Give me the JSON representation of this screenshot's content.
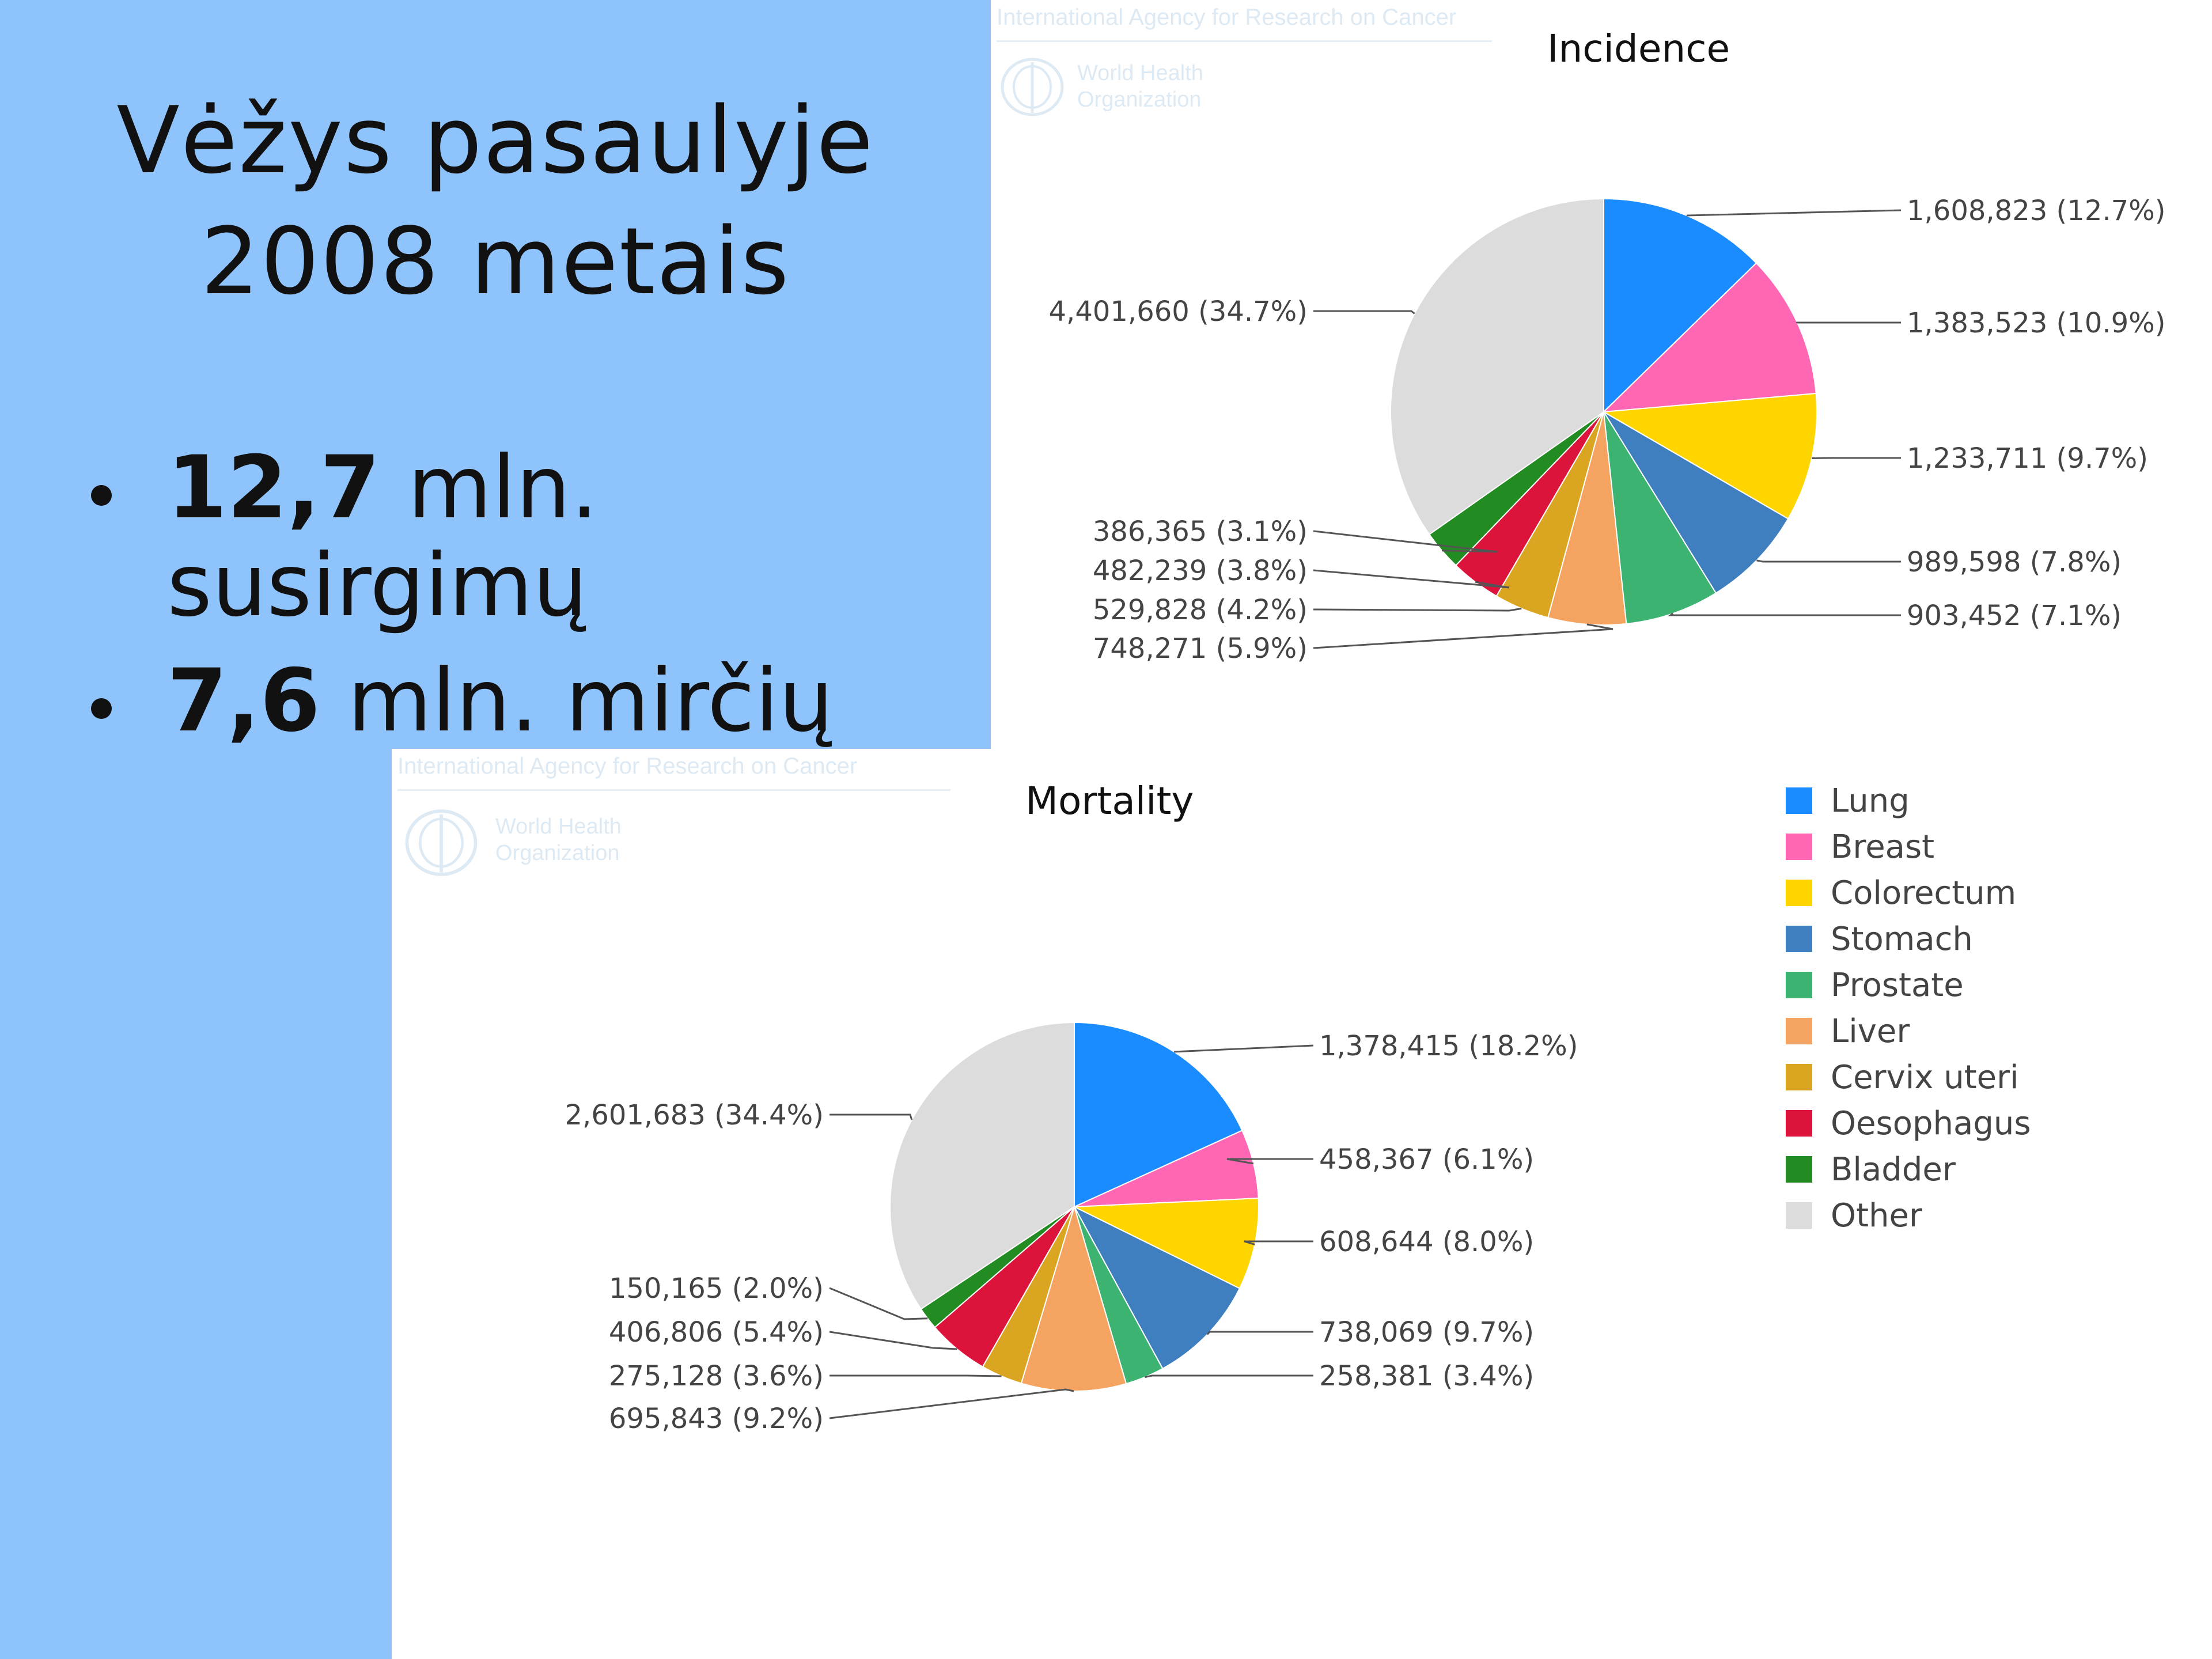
{
  "slide": {
    "title_line1": "Vėžys pasaulyje",
    "title_line2": "2008 metais",
    "bullets": [
      {
        "bold": "12,7",
        "rest": " mln.",
        "line2": "susirgimų"
      },
      {
        "bold": "7,6",
        "rest": " mln. mirčių",
        "line2": ""
      }
    ]
  },
  "watermark": {
    "agency": "International Agency for Research on Cancer",
    "organization": "World Health\nOrganization"
  },
  "chart_data": [
    {
      "type": "pie",
      "title": "Incidence",
      "categories": [
        "Lung",
        "Breast",
        "Colorectum",
        "Stomach",
        "Prostate",
        "Liver",
        "Cervix uteri",
        "Oesophagus",
        "Bladder",
        "Other"
      ],
      "values": [
        1608823,
        1383523,
        1233711,
        989598,
        903452,
        748271,
        529828,
        482239,
        386365,
        4401660
      ],
      "labels": [
        "1,608,823 (12.7%)",
        "1,383,523 (10.9%)",
        "1,233,711 (9.7%)",
        "989,598 (7.8%)",
        "903,452 (7.1%)",
        "748,271 (5.9%)",
        "529,828 (4.2%)",
        "482,239 (3.8%)",
        "386,365 (3.1%)",
        "4,401,660 (34.7%)"
      ]
    },
    {
      "type": "pie",
      "title": "Mortality",
      "categories": [
        "Lung",
        "Breast",
        "Colorectum",
        "Stomach",
        "Prostate",
        "Liver",
        "Cervix uteri",
        "Oesophagus",
        "Bladder",
        "Other"
      ],
      "values": [
        1378415,
        458367,
        608644,
        738069,
        258381,
        695843,
        275128,
        406806,
        150165,
        2601683
      ],
      "labels": [
        "1,378,415 (18.2%)",
        "458,367 (6.1%)",
        "608,644 (8.0%)",
        "738,069 (9.7%)",
        "258,381 (3.4%)",
        "695,843 (9.2%)",
        "275,128 (3.6%)",
        "406,806 (5.4%)",
        "150,165 (2.0%)",
        "2,601,683 (34.4%)"
      ]
    }
  ],
  "legend": {
    "placement": "right",
    "items": [
      {
        "label": "Lung",
        "color": "#1a8cff"
      },
      {
        "label": "Breast",
        "color": "#ff66b3"
      },
      {
        "label": "Colorectum",
        "color": "#ffd500"
      },
      {
        "label": "Stomach",
        "color": "#3f7fbf"
      },
      {
        "label": "Prostate",
        "color": "#3cb371"
      },
      {
        "label": "Liver",
        "color": "#f4a460"
      },
      {
        "label": "Cervix uteri",
        "color": "#daa520"
      },
      {
        "label": "Oesophagus",
        "color": "#dc143c"
      },
      {
        "label": "Bladder",
        "color": "#228b22"
      },
      {
        "label": "Other",
        "color": "#dcdcdc"
      }
    ]
  }
}
